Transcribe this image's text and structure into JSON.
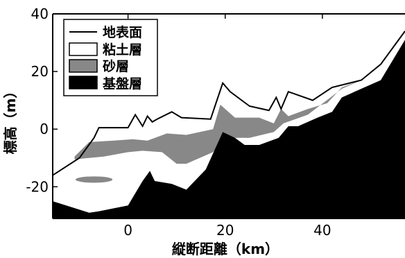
{
  "chart_data": {
    "type": "area",
    "xlabel": "縦断距離（km）",
    "ylabel": "標高（m）",
    "xlim": [
      -15.5,
      57
    ],
    "ylim": [
      -31,
      40
    ],
    "xticks": [
      0,
      20,
      40
    ],
    "yticks": [
      -20,
      0,
      20,
      40
    ],
    "tick_labels_x": [
      "0",
      "20",
      "40"
    ],
    "tick_labels_y": [
      "-20",
      "0",
      "20",
      "40"
    ],
    "grid": false,
    "legend_position": "top-left",
    "legend": [
      {
        "label": "地表面",
        "kind": "line",
        "color": "#000000"
      },
      {
        "label": "粘土層",
        "kind": "box",
        "color": "#ffffff"
      },
      {
        "label": "砂層",
        "kind": "box",
        "color": "#888888"
      },
      {
        "label": "基盤層",
        "kind": "box",
        "color": "#000000"
      }
    ],
    "series": [
      {
        "name": "地表面",
        "x": [
          -15.5,
          -10,
          -7,
          -6,
          -4,
          -2,
          0,
          1.5,
          3,
          4,
          5,
          6,
          9,
          11,
          17,
          19.5,
          21,
          25,
          29,
          30.5,
          31.5,
          33,
          38,
          42,
          48,
          52,
          57
        ],
        "y": [
          -16,
          -10,
          -3,
          0.5,
          0.5,
          0.5,
          0.5,
          5,
          1,
          4.5,
          2.5,
          3.5,
          6,
          4,
          3.5,
          16,
          13,
          8,
          6.5,
          11,
          7,
          13,
          10,
          14.5,
          17,
          22.5,
          34
        ]
      },
      {
        "name": "砂層上面",
        "x": [
          -11,
          -8,
          -3,
          1,
          4,
          8,
          12,
          17.5,
          19,
          22,
          27,
          30,
          31.5,
          33,
          37,
          41,
          44,
          48
        ],
        "y": [
          -9.5,
          -4.5,
          -4,
          -3.5,
          -4,
          -1.5,
          -2,
          0,
          8.5,
          4,
          4,
          2,
          7,
          4.5,
          7,
          9,
          14.5,
          17
        ]
      },
      {
        "name": "砂層下面",
        "x": [
          -11,
          -5,
          0,
          3,
          7,
          10,
          12,
          17.5,
          20,
          25,
          30,
          32,
          37,
          44,
          48
        ],
        "y": [
          -10.5,
          -9.5,
          -8,
          -7.5,
          -8,
          -12,
          -12,
          -8,
          -3,
          -3,
          -1,
          2,
          5,
          14,
          17
        ]
      },
      {
        "name": "基盤層上面",
        "x": [
          -15.5,
          -8,
          -6,
          0,
          3,
          4.5,
          5.5,
          9,
          12,
          16,
          19.5,
          22,
          24,
          27,
          31,
          33,
          35,
          39,
          42,
          44,
          48,
          52,
          57
        ],
        "y": [
          -25,
          -29,
          -28.5,
          -26.5,
          -18,
          -14.5,
          -18,
          -19,
          -21,
          -14,
          -1,
          -3,
          -5.5,
          -5.5,
          -3,
          1,
          1,
          4,
          6,
          11,
          14,
          17,
          31
        ]
      }
    ],
    "lens": {
      "name": "砂層レンズ",
      "center": [
        -7,
        -17.5
      ],
      "rx": 3.8,
      "ry": 1.1
    }
  }
}
